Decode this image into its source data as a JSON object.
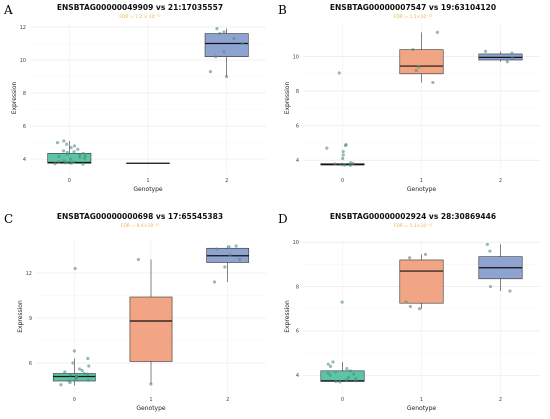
{
  "chart_data": [
    {
      "panel": "A",
      "type": "boxplot",
      "title": "ENSBTAG00000049909 vs 21:17035557",
      "subtitle": "FDR = 7.2 × 10⁻¹²",
      "xlabel": "Genotype",
      "ylabel": "Expression",
      "categories": [
        "0",
        "1",
        "2"
      ],
      "yticks": [
        4,
        6,
        8,
        10,
        12
      ],
      "ylim": [
        3.1,
        12.3
      ],
      "colors": [
        "#5ec4a6",
        "#f2a585",
        "#8fa3d0"
      ],
      "boxes": [
        {
          "min": 3.7,
          "q1": 3.75,
          "median": 3.8,
          "q3": 4.35,
          "max": 5.1
        },
        {
          "min": 3.75,
          "q1": 3.75,
          "median": 3.75,
          "q3": 3.75,
          "max": 3.75
        },
        {
          "min": 9.0,
          "q1": 10.2,
          "median": 11.0,
          "q3": 11.6,
          "max": 11.9
        }
      ],
      "points": [
        [
          0,
          3.7
        ],
        [
          0,
          3.72
        ],
        [
          0,
          3.75
        ],
        [
          0,
          3.78
        ],
        [
          0,
          3.8
        ],
        [
          0,
          3.82
        ],
        [
          0,
          3.85
        ],
        [
          0,
          3.9
        ],
        [
          0,
          4.0
        ],
        [
          0,
          4.05
        ],
        [
          0,
          4.1
        ],
        [
          0,
          4.15
        ],
        [
          0,
          4.2
        ],
        [
          0,
          4.25
        ],
        [
          0,
          4.3
        ],
        [
          0,
          4.35
        ],
        [
          0,
          4.4
        ],
        [
          0,
          4.45
        ],
        [
          0,
          4.5
        ],
        [
          0,
          4.6
        ],
        [
          0,
          4.7
        ],
        [
          0,
          4.8
        ],
        [
          0,
          4.9
        ],
        [
          0,
          5.0
        ],
        [
          0,
          5.1
        ],
        [
          2,
          9.0
        ],
        [
          2,
          9.3
        ],
        [
          2,
          10.2
        ],
        [
          2,
          10.5
        ],
        [
          2,
          11.0
        ],
        [
          2,
          11.3
        ],
        [
          2,
          11.6
        ],
        [
          2,
          11.7
        ],
        [
          2,
          11.9
        ]
      ]
    },
    {
      "panel": "B",
      "type": "boxplot",
      "title": "ENSBTAG00000007547 vs 19:63104120",
      "subtitle": "FDR = 1.1×10⁻¹²",
      "xlabel": "Genotype",
      "ylabel": "Expression",
      "categories": [
        "0",
        "1",
        "2"
      ],
      "yticks": [
        4,
        6,
        8,
        10
      ],
      "ylim": [
        3.2,
        12.0
      ],
      "colors": [
        "#5ec4a6",
        "#f2a585",
        "#8fa3d0"
      ],
      "boxes": [
        {
          "min": 3.7,
          "q1": 3.72,
          "median": 3.75,
          "q3": 3.8,
          "max": 3.85
        },
        {
          "min": 8.5,
          "q1": 9.0,
          "median": 9.45,
          "q3": 10.4,
          "max": 11.4
        },
        {
          "min": 9.7,
          "q1": 9.8,
          "median": 9.95,
          "q3": 10.15,
          "max": 10.3
        }
      ],
      "points": [
        [
          0,
          3.7
        ],
        [
          0,
          3.72
        ],
        [
          0,
          3.75
        ],
        [
          0,
          3.78
        ],
        [
          0,
          3.8
        ],
        [
          0,
          3.85
        ],
        [
          0,
          4.1
        ],
        [
          0,
          4.3
        ],
        [
          0,
          4.5
        ],
        [
          0,
          4.7
        ],
        [
          0,
          4.85
        ],
        [
          0,
          4.9
        ],
        [
          0,
          9.05
        ],
        [
          1,
          8.5
        ],
        [
          1,
          9.2
        ],
        [
          1,
          9.4
        ],
        [
          1,
          10.4
        ],
        [
          1,
          11.4
        ],
        [
          2,
          9.7
        ],
        [
          2,
          9.9
        ],
        [
          2,
          10.2
        ],
        [
          2,
          10.3
        ]
      ]
    },
    {
      "panel": "C",
      "type": "boxplot",
      "title": "ENSBTAG00000000698 vs 17:65545383",
      "subtitle": "FDR = 9.4×10⁻¹²",
      "xlabel": "Genotype",
      "ylabel": "Expression",
      "categories": [
        "0",
        "1",
        "2"
      ],
      "yticks": [
        6,
        9,
        12
      ],
      "ylim": [
        4.0,
        14.2
      ],
      "colors": [
        "#5ec4a6",
        "#f2a585",
        "#8fa3d0"
      ],
      "boxes": [
        {
          "min": 4.5,
          "q1": 4.8,
          "median": 5.1,
          "q3": 5.3,
          "max": 6.3
        },
        {
          "min": 4.6,
          "q1": 6.1,
          "median": 8.8,
          "q3": 10.4,
          "max": 12.9
        },
        {
          "min": 11.4,
          "q1": 12.7,
          "median": 13.15,
          "q3": 13.65,
          "max": 13.8
        }
      ],
      "points": [
        [
          0,
          4.55
        ],
        [
          0,
          4.7
        ],
        [
          0,
          4.8
        ],
        [
          0,
          4.85
        ],
        [
          0,
          4.9
        ],
        [
          0,
          5.0
        ],
        [
          0,
          5.05
        ],
        [
          0,
          5.1
        ],
        [
          0,
          5.15
        ],
        [
          0,
          5.2
        ],
        [
          0,
          5.25
        ],
        [
          0,
          5.3
        ],
        [
          0,
          5.4
        ],
        [
          0,
          5.5
        ],
        [
          0,
          5.6
        ],
        [
          0,
          5.8
        ],
        [
          0,
          6.0
        ],
        [
          0,
          6.3
        ],
        [
          0,
          6.8
        ],
        [
          0,
          12.3
        ],
        [
          1,
          4.6
        ],
        [
          1,
          12.9
        ],
        [
          2,
          11.4
        ],
        [
          2,
          12.4
        ],
        [
          2,
          12.9
        ],
        [
          2,
          13.2
        ],
        [
          2,
          13.6
        ],
        [
          2,
          13.75
        ],
        [
          2,
          13.8
        ]
      ]
    },
    {
      "panel": "D",
      "type": "boxplot",
      "title": "ENSBTAG00000002924 vs 28:30869446",
      "subtitle": "FDR = 1.1×10⁻¹²",
      "xlabel": "Genotype",
      "ylabel": "Expression",
      "categories": [
        "0",
        "1",
        "2"
      ],
      "yticks": [
        4,
        6,
        8,
        10
      ],
      "ylim": [
        3.2,
        10.1
      ],
      "colors": [
        "#5ec4a6",
        "#f2a585",
        "#8fa3d0"
      ],
      "boxes": [
        {
          "min": 3.7,
          "q1": 3.72,
          "median": 3.75,
          "q3": 4.2,
          "max": 4.6
        },
        {
          "min": 7.0,
          "q1": 7.25,
          "median": 8.7,
          "q3": 9.2,
          "max": 9.45
        },
        {
          "min": 7.8,
          "q1": 8.35,
          "median": 8.85,
          "q3": 9.35,
          "max": 9.9
        }
      ],
      "points": [
        [
          0,
          3.7
        ],
        [
          0,
          3.72
        ],
        [
          0,
          3.75
        ],
        [
          0,
          3.8
        ],
        [
          0,
          3.85
        ],
        [
          0,
          3.9
        ],
        [
          0,
          4.0
        ],
        [
          0,
          4.05
        ],
        [
          0,
          4.1
        ],
        [
          0,
          4.15
        ],
        [
          0,
          4.2
        ],
        [
          0,
          4.3
        ],
        [
          0,
          4.4
        ],
        [
          0,
          4.5
        ],
        [
          0,
          4.6
        ],
        [
          0,
          7.3
        ],
        [
          1,
          7.0
        ],
        [
          1,
          7.1
        ],
        [
          1,
          7.3
        ],
        [
          1,
          9.3
        ],
        [
          1,
          9.45
        ],
        [
          2,
          7.8
        ],
        [
          2,
          8.0
        ],
        [
          2,
          9.6
        ],
        [
          2,
          9.9
        ]
      ]
    }
  ]
}
